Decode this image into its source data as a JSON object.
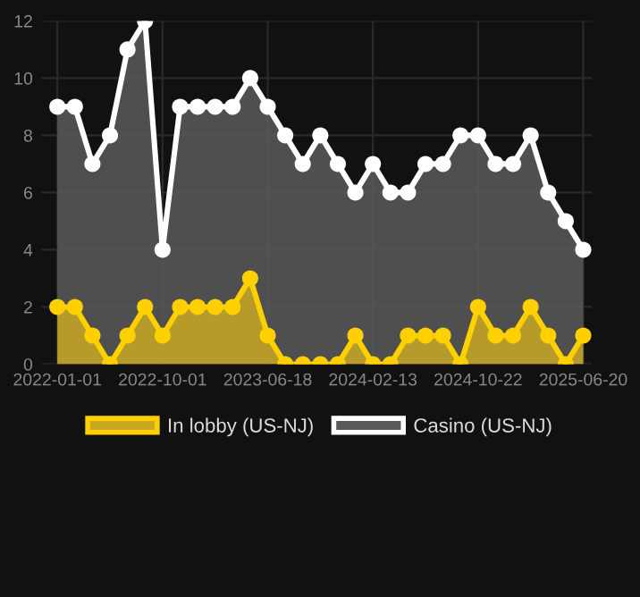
{
  "chart_data": {
    "type": "area",
    "categories": [
      "2022-01-01",
      null,
      null,
      null,
      null,
      null,
      "2022-10-01",
      null,
      null,
      null,
      null,
      null,
      "2023-06-18",
      null,
      null,
      null,
      null,
      null,
      "2024-02-13",
      null,
      null,
      null,
      null,
      null,
      "2024-10-22",
      null,
      null,
      null,
      null,
      null,
      "2025-06-20"
    ],
    "series": [
      {
        "name": "Casino (US-NJ)",
        "color": "#ffffff",
        "values": [
          9,
          9,
          7,
          8,
          11,
          12,
          4,
          9,
          9,
          9,
          9,
          10,
          9,
          8,
          7,
          8,
          7,
          6,
          7,
          6,
          6,
          7,
          7,
          8,
          8,
          7,
          7,
          8,
          6,
          5,
          4
        ]
      },
      {
        "name": "In lobby (US-NJ)",
        "color": "#ffd000",
        "values": [
          2,
          2,
          1,
          0,
          1,
          2,
          1,
          2,
          2,
          2,
          2,
          3,
          1,
          0,
          0,
          0,
          0,
          1,
          0,
          0,
          1,
          1,
          1,
          0,
          2,
          1,
          1,
          2,
          1,
          0,
          1
        ]
      }
    ],
    "ylim": [
      0,
      12
    ],
    "yticks": [
      0,
      2,
      4,
      6,
      8,
      10,
      12
    ],
    "grid": true,
    "legend": "bottom",
    "marker": "circle",
    "line_style": "solid"
  }
}
